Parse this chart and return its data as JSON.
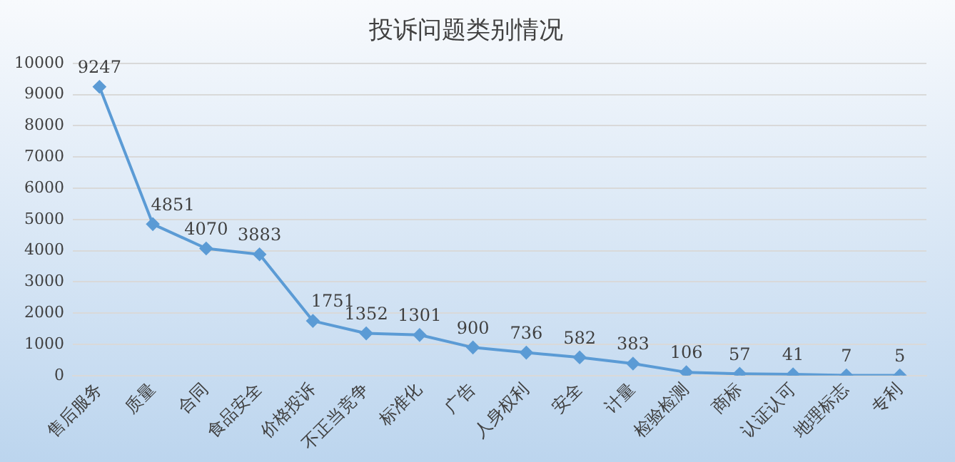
{
  "chart_data": {
    "type": "line",
    "title": "投诉问题类别情况",
    "categories": [
      "售后服务",
      "质量",
      "合同",
      "食品安全",
      "价格投诉",
      "不正当竞争",
      "标准化",
      "广告",
      "人身权利",
      "安全",
      "计量",
      "检验检测",
      "商标",
      "认证认可",
      "地理标志",
      "专利"
    ],
    "series": [
      {
        "color": "#5b9bd5",
        "values": [
          9247,
          4851,
          4070,
          3883,
          1751,
          1352,
          1301,
          900,
          736,
          582,
          383,
          106,
          57,
          41,
          7,
          5
        ]
      }
    ],
    "ylim": [
      0,
      10000
    ],
    "yticks": [
      0,
      1000,
      2000,
      3000,
      4000,
      5000,
      6000,
      7000,
      8000,
      9000,
      10000
    ],
    "grid": "y",
    "legend": false,
    "marker": "diamond",
    "line_style": "solid",
    "data_labels": true
  }
}
